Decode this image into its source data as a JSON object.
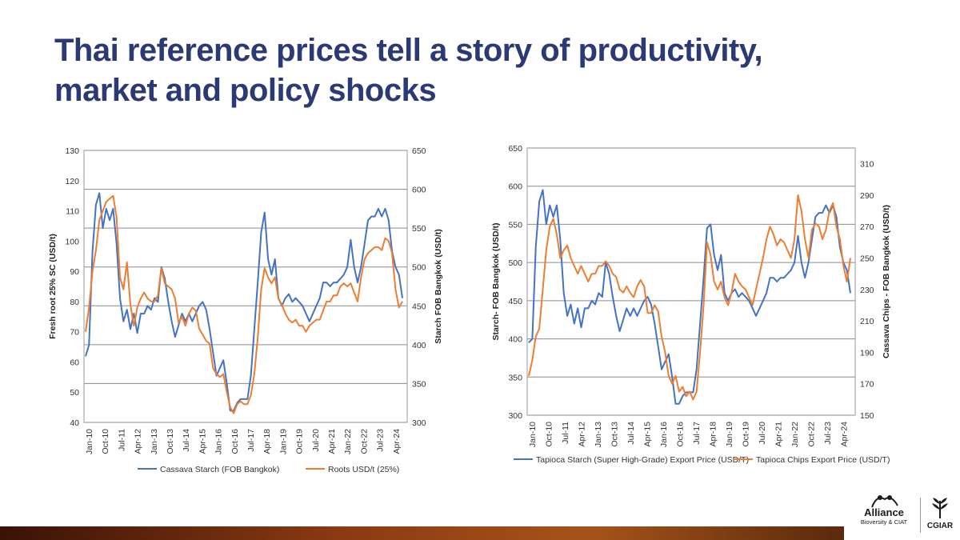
{
  "slide": {
    "title_line1": "Thai reference prices tell a story of productivity,",
    "title_line2": "market and policy shocks"
  },
  "colors": {
    "blue": "#4472c4",
    "orange": "#ed7d31",
    "title": "#2b3a75"
  },
  "logos": {
    "alliance_name": "Alliance",
    "alliance_sub": "Bioversity & CIAT",
    "cgiar_name": "CGIAR"
  },
  "chart_data": [
    {
      "type": "line",
      "y_left_label": "Fresh root 25% SC (USD/t)",
      "y_right_label": "Starch FOB Bangkok (USD/t)",
      "ylim_left": [
        40,
        130
      ],
      "ylim_right": [
        300,
        650
      ],
      "y_left_ticks": [
        40,
        50,
        60,
        70,
        80,
        90,
        100,
        110,
        120,
        130
      ],
      "y_right_ticks": [
        300,
        350,
        400,
        450,
        500,
        550,
        600,
        650
      ],
      "x_tick_labels": [
        "Jan-10",
        "Oct-10",
        "Jul-11",
        "Apr-12",
        "Jan-13",
        "Oct-13",
        "Jul-14",
        "Apr-15",
        "Jan-16",
        "Oct-16",
        "Jul-17",
        "Apr-18",
        "Jan-19",
        "Oct-19",
        "Jul-20",
        "Apr-21",
        "Jan-22",
        "Oct-22",
        "Jul-23",
        "Apr-24"
      ],
      "series": [
        {
          "name": "Cassava Starch (FOB Bangkok)",
          "axis": "right",
          "color": "#4472c4",
          "values": [
            385,
            400,
            520,
            580,
            595,
            550,
            575,
            560,
            575,
            530,
            460,
            430,
            445,
            420,
            440,
            415,
            440,
            440,
            450,
            445,
            460,
            455,
            500,
            485,
            455,
            430,
            410,
            425,
            440,
            430,
            440,
            430,
            440,
            450,
            455,
            445,
            420,
            390,
            360,
            370,
            380,
            350,
            315,
            315,
            325,
            330,
            330,
            330,
            360,
            420,
            480,
            545,
            570,
            510,
            490,
            510,
            460,
            450,
            460,
            465,
            455,
            460,
            455,
            450,
            440,
            430,
            440,
            450,
            460,
            480,
            480,
            475,
            480,
            480,
            485,
            490,
            500,
            535,
            500,
            480,
            500,
            530,
            560,
            565,
            565,
            575,
            565,
            575,
            560,
            520,
            500,
            490,
            460
          ]
        },
        {
          "name": "Roots USD/t (25%)",
          "axis": "left",
          "color": "#ed7d31",
          "values": [
            70,
            78,
            90,
            97,
            107,
            110,
            113,
            114,
            115,
            108,
            88,
            84,
            93,
            79,
            72,
            78,
            81,
            83,
            81,
            80,
            80,
            82,
            91,
            86,
            85,
            84,
            81,
            73,
            75,
            72,
            76,
            78,
            77,
            71,
            69,
            67,
            66,
            58,
            56,
            55,
            56,
            50,
            45,
            43,
            46,
            47,
            46,
            46,
            49,
            56,
            68,
            84,
            91,
            88,
            86,
            88,
            81,
            79,
            76,
            74,
            73,
            74,
            72,
            72,
            70,
            72,
            73,
            74,
            74,
            77,
            80,
            80,
            82,
            82,
            85,
            86,
            85,
            86,
            83,
            80,
            88,
            94,
            96,
            97,
            98,
            98,
            97,
            101,
            100,
            96,
            84,
            78,
            80
          ]
        }
      ]
    },
    {
      "type": "line",
      "y_left_label": "Starch- FOB Bangkok (USD/t)",
      "y_right_label": "Cassava Chips - FOB Bangkok (USD/t)",
      "ylim_left": [
        300,
        650
      ],
      "ylim_right": [
        150,
        320
      ],
      "y_left_ticks": [
        300,
        350,
        400,
        450,
        500,
        550,
        600,
        650
      ],
      "y_right_ticks": [
        150,
        170,
        190,
        210,
        230,
        250,
        270,
        290,
        310
      ],
      "x_tick_labels": [
        "Jan-10",
        "Oct-10",
        "Jul-11",
        "Apr-12",
        "Jan-13",
        "Oct-13",
        "Jul-14",
        "Apr-15",
        "Jan-16",
        "Oct-16",
        "Jul-17",
        "Apr-18",
        "Jan-19",
        "Oct-19",
        "Jul-20",
        "Apr-21",
        "Jan-22",
        "Oct-22",
        "Jul-23",
        "Apr-24"
      ],
      "series": [
        {
          "name": "Tapioca Starch (Super High-Grade) Export Price (USD/T)",
          "axis": "left",
          "color": "#4472c4",
          "values": [
            395,
            400,
            520,
            580,
            595,
            550,
            575,
            560,
            575,
            530,
            460,
            430,
            445,
            420,
            440,
            415,
            440,
            440,
            450,
            445,
            460,
            455,
            500,
            485,
            455,
            430,
            410,
            425,
            440,
            430,
            440,
            430,
            440,
            450,
            455,
            445,
            420,
            390,
            360,
            370,
            380,
            350,
            315,
            315,
            325,
            330,
            330,
            330,
            360,
            420,
            480,
            545,
            550,
            510,
            490,
            510,
            460,
            450,
            460,
            465,
            455,
            460,
            455,
            450,
            440,
            430,
            440,
            450,
            460,
            480,
            480,
            475,
            480,
            480,
            485,
            490,
            500,
            535,
            500,
            480,
            500,
            530,
            560,
            565,
            565,
            575,
            565,
            575,
            560,
            520,
            500,
            490,
            460
          ]
        },
        {
          "name": "Tapioca Chips Export Price (USD/T)",
          "axis": "right",
          "color": "#ed7d31",
          "values": [
            175,
            185,
            200,
            205,
            230,
            255,
            270,
            275,
            265,
            250,
            255,
            258,
            250,
            245,
            240,
            245,
            240,
            235,
            240,
            240,
            245,
            245,
            248,
            245,
            240,
            238,
            230,
            228,
            232,
            228,
            225,
            232,
            236,
            232,
            215,
            215,
            220,
            216,
            200,
            190,
            175,
            170,
            175,
            165,
            168,
            162,
            165,
            160,
            165,
            190,
            220,
            260,
            252,
            235,
            230,
            235,
            225,
            220,
            228,
            240,
            235,
            232,
            230,
            225,
            220,
            230,
            240,
            250,
            262,
            270,
            265,
            258,
            262,
            260,
            255,
            250,
            262,
            290,
            280,
            262,
            250,
            268,
            272,
            270,
            262,
            268,
            280,
            285,
            270,
            262,
            245,
            235,
            250
          ]
        }
      ]
    }
  ]
}
